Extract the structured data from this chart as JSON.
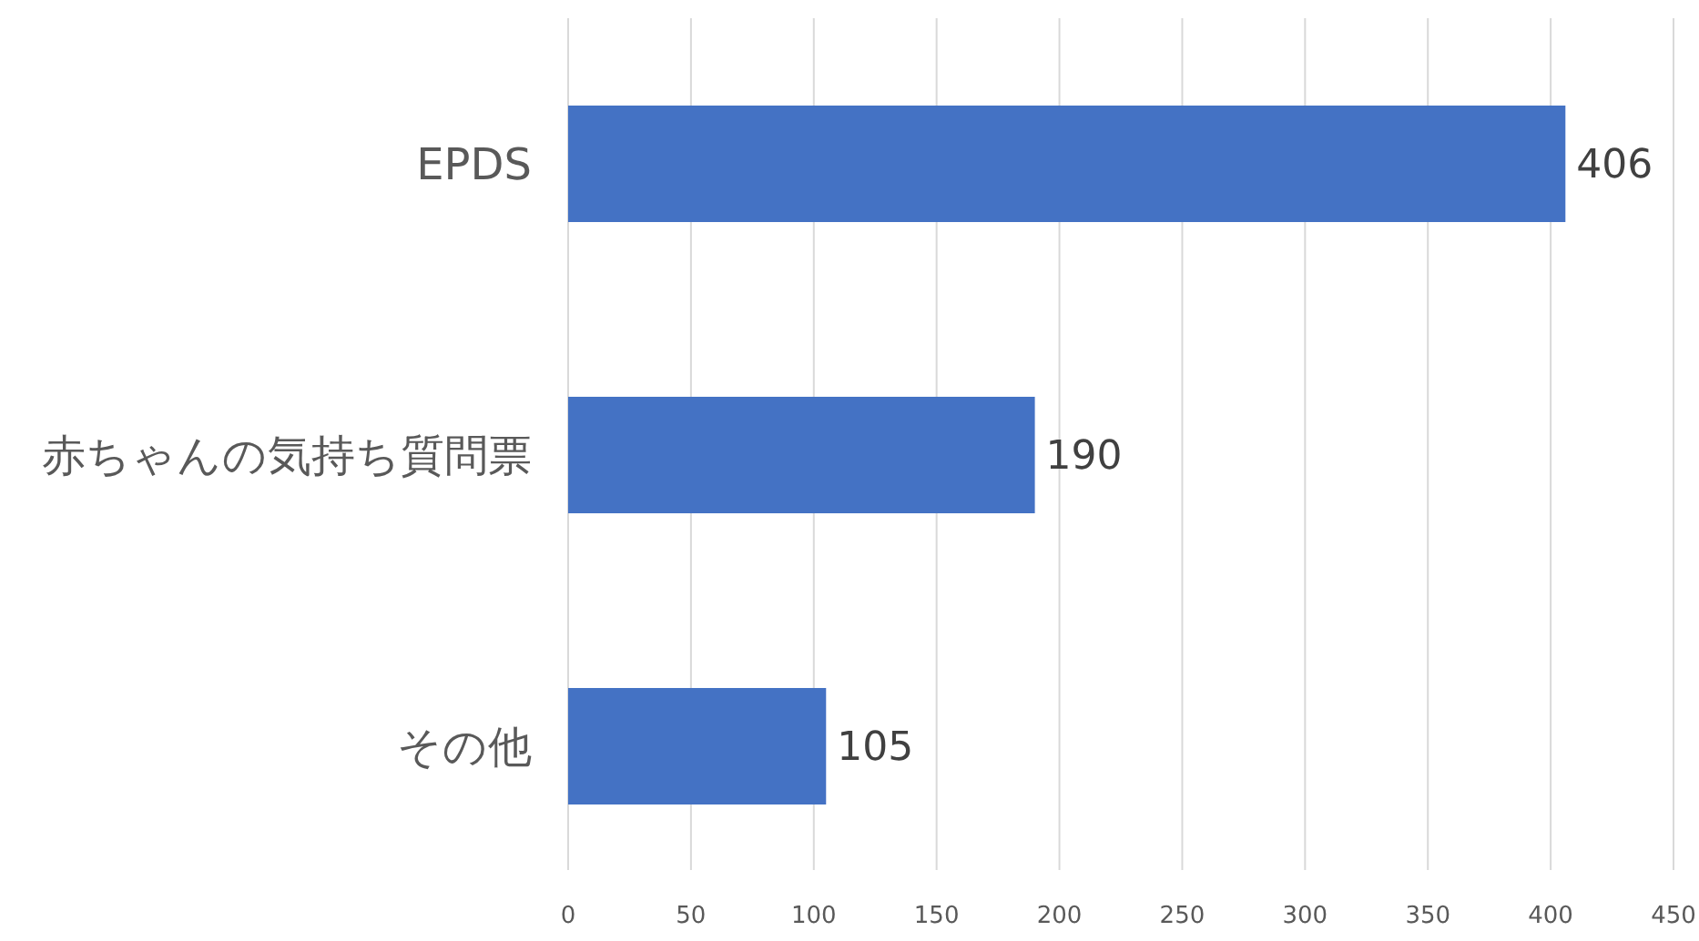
{
  "chart_data": {
    "type": "bar",
    "orientation": "horizontal",
    "categories": [
      "EPDS",
      "赤ちゃんの気持ち質問票",
      "その他"
    ],
    "values": [
      406,
      190,
      105
    ],
    "color": "#4472c4",
    "xlim": [
      0,
      450
    ],
    "xticks": [
      0,
      50,
      100,
      150,
      200,
      250,
      300,
      350,
      400,
      450
    ],
    "grid": "x",
    "data_labels": true
  }
}
